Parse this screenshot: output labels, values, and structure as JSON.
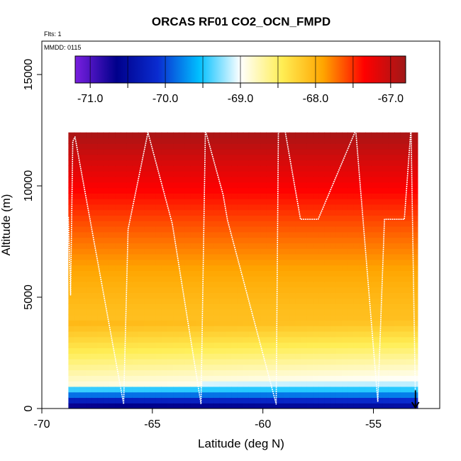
{
  "chart_data": {
    "type": "heatmap",
    "title": "ORCAS RF01 CO2_OCN_FMPD",
    "annotations": {
      "flights": "Flts: 1",
      "date": "MMDD: 0115"
    },
    "xlabel": "Latitude (deg N)",
    "ylabel": "Altitude (m)",
    "xlim": [
      -70,
      -52
    ],
    "ylim": [
      0,
      16500
    ],
    "x_ticks": [
      -70,
      -65,
      -60,
      -55
    ],
    "x_tick_labels": [
      "-70",
      "-65",
      "-60",
      "-55"
    ],
    "y_ticks": [
      0,
      5000,
      10000,
      15000
    ],
    "y_tick_labels": [
      "0",
      "5000",
      "10000",
      "15000"
    ],
    "colorbar": {
      "range": [
        -71.2,
        -66.8
      ],
      "ticks": [
        -71.0,
        -70.0,
        -69.0,
        -68.0,
        -67.0
      ],
      "tick_labels": [
        "-71.0",
        "-70.0",
        "-69.0",
        "-68.0",
        "-67.0"
      ],
      "colors": [
        "#7a1fe0",
        "#00008b",
        "#0a2cd0",
        "#00bfff",
        "#ffffff",
        "#ffee55",
        "#ffa500",
        "#ff0000",
        "#a01818"
      ]
    },
    "field_extent": {
      "lat": [
        -68.8,
        -53.0
      ],
      "alt": [
        0,
        12400
      ]
    },
    "flight_track": {
      "color": "#ffffff",
      "lat": [
        -68.8,
        -68.7,
        -68.6,
        -68.5,
        -68.3,
        -66.3,
        -66.1,
        -65.2,
        -64.1,
        -62.8,
        -62.6,
        -61.8,
        -61.6,
        -59.4,
        -59.3,
        -59.0,
        -58.3,
        -57.5,
        -55.8,
        -54.8,
        -54.5,
        -53.6,
        -53.3,
        -53.1
      ],
      "alt": [
        8600,
        5100,
        12000,
        12200,
        11100,
        200,
        8050,
        12400,
        8300,
        200,
        12500,
        9600,
        8450,
        200,
        12400,
        12500,
        8500,
        8500,
        12500,
        300,
        8500,
        8500,
        12600,
        500
      ]
    }
  }
}
